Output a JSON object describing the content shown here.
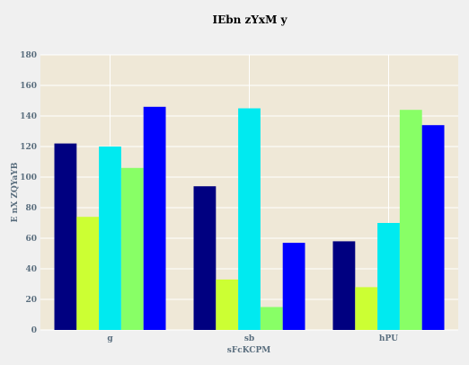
{
  "chart_data": {
    "type": "bar",
    "title": "IEbn zYxM y",
    "xlabel": "sFcKCPM",
    "ylabel": "E  nX ZQYaYB",
    "categories": [
      "g",
      "sb",
      "hPU"
    ],
    "series": [
      {
        "color": "#000080",
        "values": [
          122,
          94,
          58
        ]
      },
      {
        "color": "#ccff33",
        "values": [
          74,
          33,
          28
        ]
      },
      {
        "color": "#00eaf0",
        "values": [
          120,
          145,
          70
        ]
      },
      {
        "color": "#88ff66",
        "values": [
          106,
          15,
          144
        ]
      },
      {
        "color": "#0000ff",
        "values": [
          146,
          57,
          134
        ]
      }
    ],
    "ylim": [
      0,
      180
    ],
    "yticks": [
      0,
      20,
      40,
      60,
      80,
      100,
      120,
      140,
      160,
      180
    ],
    "grid": true,
    "legend": "none"
  },
  "colors": {
    "plot_background": "#efe8d7",
    "page_background": "#f0f0f0",
    "grid": "#ffffff",
    "tick_text": "#5a6e7e"
  }
}
